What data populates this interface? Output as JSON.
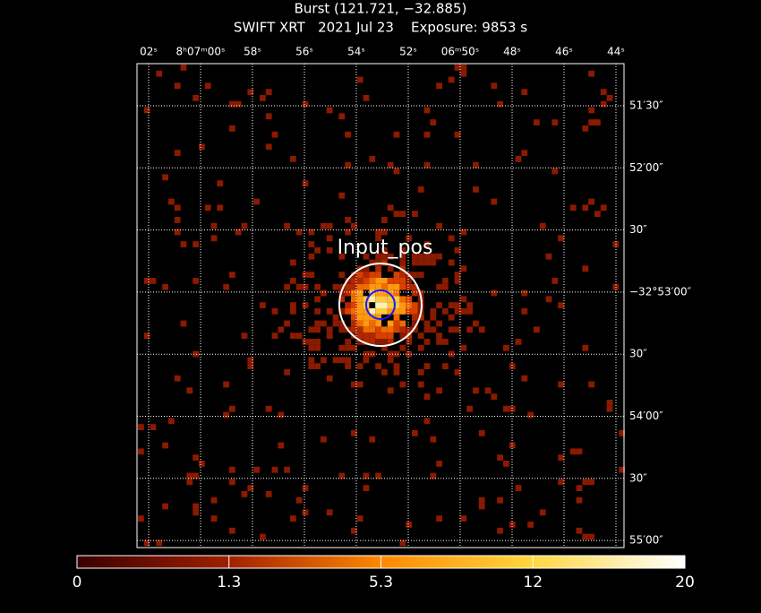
{
  "header": {
    "title": "Burst (121.721, −32.885)",
    "subtitle": "SWIFT XRT   2021 Jul 23    Exposure: 9853 s"
  },
  "top_axis": {
    "labels": [
      "02ˢ",
      "8ʰ07ᵐ00ˢ",
      "58ˢ",
      "56ˢ",
      "54ˢ",
      "52ˢ",
      "06ᵐ50ˢ",
      "48ˢ",
      "46ˢ",
      "44ˢ"
    ]
  },
  "right_axis": {
    "labels": [
      "51′30″",
      "52′00″",
      "30″",
      "−32°53′00″",
      "30″",
      "54′00″",
      "30″",
      "55′00″"
    ]
  },
  "annotation": "Input_pos",
  "colorbar": {
    "ticks": [
      0,
      1.3,
      5.3,
      12,
      20
    ]
  }
}
